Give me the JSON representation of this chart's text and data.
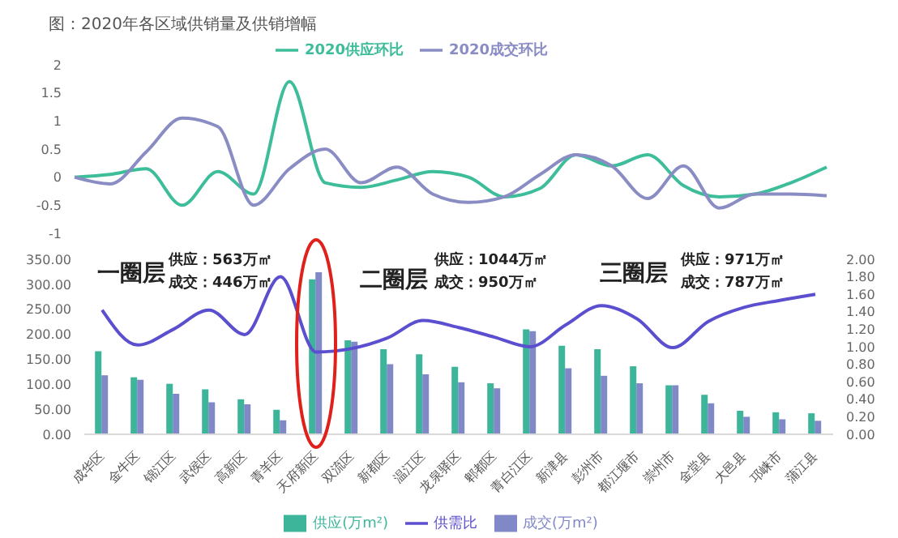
{
  "chart_data": [
    {
      "type": "line",
      "title": "图：2020年各区域供销量及供销增幅",
      "categories": [
        null,
        null,
        null,
        null,
        null,
        null,
        null,
        null,
        null,
        null,
        null,
        null,
        null,
        null,
        null,
        null,
        null,
        null,
        null,
        null,
        null,
        null
      ],
      "series": [
        {
          "name": "2020供应环比",
          "color": "#3dbd9a",
          "values": [
            0,
            0.05,
            0.15,
            -0.5,
            0.1,
            -0.3,
            1.7,
            -0.1,
            -0.18,
            -0.05,
            0.1,
            0,
            -0.35,
            -0.2,
            0.4,
            0.2,
            0.4,
            -0.15,
            -0.35,
            -0.3,
            -0.1,
            0.18
          ]
        },
        {
          "name": "2020成交环比",
          "color": "#8a8cc4",
          "values": [
            0,
            -0.12,
            0.45,
            1.05,
            0.9,
            -0.5,
            0.15,
            0.5,
            -0.1,
            0.18,
            -0.3,
            -0.45,
            -0.35,
            0.05,
            0.4,
            0.2,
            -0.38,
            0.2,
            -0.55,
            -0.3,
            -0.3,
            -0.33
          ]
        }
      ],
      "ylim": [
        -1,
        2
      ],
      "yticks": [
        -1,
        -0.5,
        0,
        0.5,
        1,
        1.5,
        2
      ],
      "tick_labels": "y",
      "legend": "top",
      "marker": "none",
      "line_style": "solid"
    },
    {
      "type": "bar",
      "categories": [
        "成华区",
        "金牛区",
        "锦江区",
        "武侯区",
        "高新区",
        "青羊区",
        "天府新区",
        "双流区",
        "新都区",
        "温江区",
        "龙泉驿区",
        "郫都区",
        "青白江区",
        "新津县",
        "彭州市",
        "都江堰市",
        "崇州市",
        "金堂县",
        "大邑县",
        "邛崃市",
        "蒲江县"
      ],
      "series": [
        {
          "name": "供应(万m²)",
          "color": "#3cb59a",
          "values": [
            166,
            114,
            101,
            90,
            70,
            49,
            310,
            188,
            170,
            160,
            135,
            102,
            210,
            177,
            170,
            136,
            98,
            79,
            47,
            44,
            42
          ]
        },
        {
          "name": "成交(万m²)",
          "color": "#8088c8",
          "values": [
            118,
            109,
            81,
            64,
            60,
            28,
            324,
            185,
            140,
            120,
            104,
            92,
            206,
            132,
            117,
            102,
            98,
            62,
            35,
            30,
            27
          ]
        },
        {
          "name": "供需比",
          "type": "line",
          "axis": "y2",
          "color": "#5b4fcf",
          "values": [
            1.42,
            1.02,
            1.2,
            1.42,
            1.14,
            1.8,
            0.94,
            0.98,
            1.1,
            1.3,
            1.22,
            1.11,
            1.0,
            1.25,
            1.47,
            1.32,
            0.99,
            1.29,
            1.45,
            1.53,
            1.6
          ]
        }
      ],
      "ylim": [
        0,
        350
      ],
      "yticks": [
        {
          "value": 0,
          "label": "0.00"
        },
        {
          "value": 50,
          "label": "50.00"
        },
        {
          "value": 100,
          "label": "100.00"
        },
        {
          "value": 150,
          "label": "150.00"
        },
        {
          "value": 200,
          "label": "200.00"
        },
        {
          "value": 250,
          "label": "250.00"
        },
        {
          "value": 300,
          "label": "300.00"
        },
        {
          "value": 350,
          "label": "350.00"
        }
      ],
      "y2lim": [
        0,
        2
      ],
      "y2ticks": [
        {
          "value": 0,
          "label": "0.00"
        },
        {
          "value": 0.2,
          "label": "0.20"
        },
        {
          "value": 0.4,
          "label": "0.40"
        },
        {
          "value": 0.6,
          "label": "0.60"
        },
        {
          "value": 0.8,
          "label": "0.80"
        },
        {
          "value": 1,
          "label": "1.00"
        },
        {
          "value": 1.2,
          "label": "1.20"
        },
        {
          "value": 1.4,
          "label": "1.40"
        },
        {
          "value": 1.6,
          "label": "1.60"
        },
        {
          "value": 1.8,
          "label": "1.80"
        },
        {
          "value": 2,
          "label": "2.00"
        }
      ],
      "annotations": [
        "一圈层",
        "供应：563万㎡",
        "成交：446万㎡",
        "二圈层",
        "供应：1044万㎡",
        "成交：950万㎡",
        "三圈层",
        "供应：971万㎡",
        "成交：787万㎡"
      ],
      "legend": "bottom",
      "marker": "none",
      "line_style": "solid"
    }
  ]
}
